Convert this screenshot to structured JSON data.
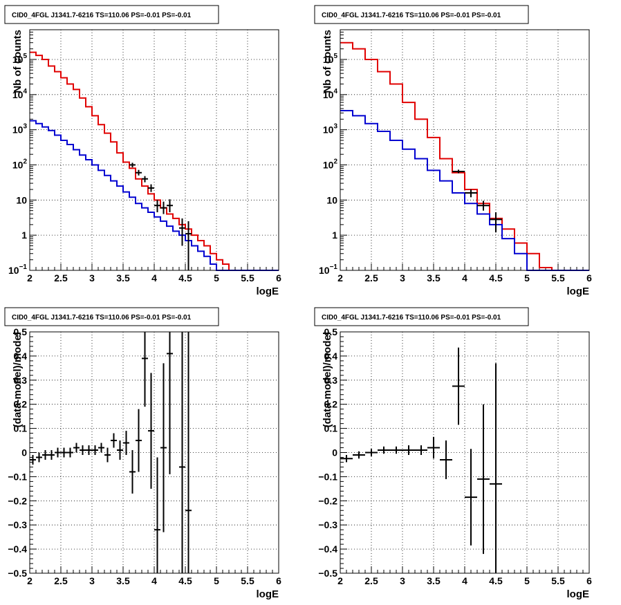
{
  "chart_data": [
    {
      "type": "line",
      "title": "CID0_4FGL J1341.7-6216 TS=110.06 PS=-0.01 PS=-0.01",
      "xlabel": "logE",
      "ylabel": "Nb of counts",
      "xlim": [
        2,
        6
      ],
      "ylim": [
        0.1,
        700000
      ],
      "yscale": "log",
      "grid": true,
      "xticks": [
        "2",
        "2.5",
        "3",
        "3.5",
        "4",
        "4.5",
        "5",
        "5.5",
        "6"
      ],
      "yticks": [
        {
          "value": 0.1,
          "base": "10",
          "exp": "−1"
        },
        {
          "value": 1,
          "base": "1",
          "exp": ""
        },
        {
          "value": 10,
          "base": "10",
          "exp": ""
        },
        {
          "value": 100,
          "base": "10",
          "exp": "2"
        },
        {
          "value": 1000,
          "base": "10",
          "exp": "3"
        },
        {
          "value": 10000,
          "base": "10",
          "exp": "4"
        },
        {
          "value": 100000,
          "base": "10",
          "exp": "5"
        }
      ],
      "bin_edges": [
        2.0,
        2.1,
        2.2,
        2.3,
        2.4,
        2.5,
        2.6,
        2.7,
        2.8,
        2.9,
        3.0,
        3.1,
        3.2,
        3.3,
        3.4,
        3.5,
        3.6,
        3.7,
        3.8,
        3.9,
        4.0,
        4.1,
        4.2,
        4.3,
        4.4,
        4.5,
        4.6,
        4.7,
        4.8,
        4.9,
        5.0,
        5.1,
        5.2,
        5.3,
        5.4,
        5.5,
        5.6,
        5.7,
        5.8,
        5.9,
        6.0
      ],
      "series": [
        {
          "color": "#e00000",
          "values": [
            160000,
            130000,
            100000,
            65000,
            45000,
            30000,
            20000,
            14000,
            8000,
            4500,
            2500,
            1400,
            800,
            450,
            220,
            120,
            80,
            40,
            25,
            15,
            10,
            6,
            4,
            3,
            2,
            1.5,
            1,
            0.7,
            0.5,
            0.3,
            0.2,
            0.15,
            0.1,
            0.1,
            0.1,
            0.1,
            0.1,
            0.1,
            0.1,
            0.1
          ]
        },
        {
          "color": "#0000d0",
          "values": [
            1800,
            1500,
            1200,
            950,
            700,
            500,
            380,
            270,
            190,
            140,
            100,
            70,
            50,
            35,
            25,
            17,
            12,
            8,
            6,
            4.5,
            3.3,
            2.5,
            1.8,
            1.3,
            1,
            0.7,
            0.5,
            0.35,
            0.25,
            0.15,
            0.1,
            0.1,
            0.1,
            0.1,
            0.1,
            0.1,
            0.1,
            0.1,
            0.1,
            0.1
          ]
        }
      ],
      "data_points": [
        {
          "x": 3.65,
          "y": 100,
          "ylo": 85,
          "yhi": 115
        },
        {
          "x": 3.75,
          "y": 60,
          "ylo": 50,
          "yhi": 72
        },
        {
          "x": 3.85,
          "y": 40,
          "ylo": 32,
          "yhi": 48
        },
        {
          "x": 3.95,
          "y": 22,
          "ylo": 17,
          "yhi": 28
        },
        {
          "x": 4.05,
          "y": 7,
          "ylo": 4.5,
          "yhi": 10
        },
        {
          "x": 4.15,
          "y": 6,
          "ylo": 4,
          "yhi": 9
        },
        {
          "x": 4.25,
          "y": 7,
          "ylo": 4.5,
          "yhi": 10.5
        },
        {
          "x": 4.45,
          "y": 1.6,
          "ylo": 0.5,
          "yhi": 3
        },
        {
          "x": 4.55,
          "y": 1.1,
          "ylo": 0.1,
          "yhi": 2.5
        }
      ]
    },
    {
      "type": "line",
      "title": "CID0_4FGL J1341.7-6216 TS=110.06 PS=-0.01 PS=-0.01",
      "xlabel": "logE",
      "ylabel": "Nb of counts",
      "xlim": [
        2,
        6
      ],
      "ylim": [
        0.1,
        700000
      ],
      "yscale": "log",
      "grid": true,
      "xticks": [
        "2",
        "2.5",
        "3",
        "3.5",
        "4",
        "4.5",
        "5",
        "5.5",
        "6"
      ],
      "yticks": [
        {
          "value": 0.1,
          "base": "10",
          "exp": "−1"
        },
        {
          "value": 1,
          "base": "1",
          "exp": ""
        },
        {
          "value": 10,
          "base": "10",
          "exp": ""
        },
        {
          "value": 100,
          "base": "10",
          "exp": "2"
        },
        {
          "value": 1000,
          "base": "10",
          "exp": "3"
        },
        {
          "value": 10000,
          "base": "10",
          "exp": "4"
        },
        {
          "value": 100000,
          "base": "10",
          "exp": "5"
        }
      ],
      "bin_edges": [
        2.0,
        2.2,
        2.4,
        2.6,
        2.8,
        3.0,
        3.2,
        3.4,
        3.6,
        3.8,
        4.0,
        4.2,
        4.4,
        4.6,
        4.8,
        5.0,
        5.2,
        5.4,
        5.6,
        5.8,
        6.0
      ],
      "series": [
        {
          "color": "#e00000",
          "values": [
            300000,
            200000,
            100000,
            45000,
            20000,
            6000,
            2000,
            600,
            150,
            60,
            20,
            8,
            3,
            1.5,
            0.6,
            0.3,
            0.12,
            0.1,
            0.1,
            0.1
          ]
        },
        {
          "color": "#0000d0",
          "values": [
            3500,
            2500,
            1500,
            900,
            500,
            280,
            150,
            70,
            35,
            16,
            8,
            4,
            2,
            0.8,
            0.3,
            0.1,
            0.1,
            0.1,
            0.1,
            0.1
          ]
        }
      ],
      "data_points": [
        {
          "x": 3.9,
          "y": 65,
          "ylo": 58,
          "yhi": 73
        },
        {
          "x": 4.1,
          "y": 16,
          "ylo": 12,
          "yhi": 20
        },
        {
          "x": 4.3,
          "y": 7,
          "ylo": 5,
          "yhi": 9.5
        },
        {
          "x": 4.5,
          "y": 2.8,
          "ylo": 1.2,
          "yhi": 4.5
        }
      ]
    },
    {
      "type": "scatter",
      "title": "CID0_4FGL J1341.7-6216 TS=110.06 PS=-0.01 PS=-0.01",
      "xlabel": "logE",
      "ylabel": "(data-model)/model",
      "xlim": [
        2,
        6
      ],
      "ylim": [
        -0.5,
        0.5
      ],
      "yscale": "linear",
      "grid": true,
      "xticks": [
        "2",
        "2.5",
        "3",
        "3.5",
        "4",
        "4.5",
        "5",
        "5.5",
        "6"
      ],
      "yticks": [
        {
          "value": -0.5,
          "label": "−0.5"
        },
        {
          "value": -0.4,
          "label": "−0.4"
        },
        {
          "value": -0.3,
          "label": "−0.3"
        },
        {
          "value": -0.2,
          "label": "−0.2"
        },
        {
          "value": -0.1,
          "label": "−0.1"
        },
        {
          "value": 0,
          "label": "0"
        },
        {
          "value": 0.1,
          "label": "0.1"
        },
        {
          "value": 0.2,
          "label": "0.2"
        },
        {
          "value": 0.3,
          "label": "0.3"
        },
        {
          "value": 0.4,
          "label": "0.4"
        },
        {
          "value": 0.5,
          "label": "0.5"
        }
      ],
      "xerr": 0.05,
      "points": [
        {
          "x": 2.05,
          "y": -0.03,
          "err": 0.02
        },
        {
          "x": 2.15,
          "y": -0.02,
          "err": 0.02
        },
        {
          "x": 2.25,
          "y": -0.01,
          "err": 0.02
        },
        {
          "x": 2.35,
          "y": -0.01,
          "err": 0.02
        },
        {
          "x": 2.45,
          "y": 0.0,
          "err": 0.02
        },
        {
          "x": 2.55,
          "y": 0.0,
          "err": 0.02
        },
        {
          "x": 2.65,
          "y": 0.0,
          "err": 0.02
        },
        {
          "x": 2.75,
          "y": 0.02,
          "err": 0.02
        },
        {
          "x": 2.85,
          "y": 0.01,
          "err": 0.02
        },
        {
          "x": 2.95,
          "y": 0.01,
          "err": 0.02
        },
        {
          "x": 3.05,
          "y": 0.01,
          "err": 0.02
        },
        {
          "x": 3.15,
          "y": 0.02,
          "err": 0.02
        },
        {
          "x": 3.25,
          "y": -0.01,
          "err": 0.03
        },
        {
          "x": 3.35,
          "y": 0.05,
          "err": 0.03
        },
        {
          "x": 3.45,
          "y": 0.01,
          "err": 0.04
        },
        {
          "x": 3.55,
          "y": 0.04,
          "err": 0.05
        },
        {
          "x": 3.65,
          "y": -0.08,
          "err": 0.09
        },
        {
          "x": 3.75,
          "y": 0.05,
          "err": 0.13
        },
        {
          "x": 3.85,
          "y": 0.39,
          "err": 0.2
        },
        {
          "x": 3.95,
          "y": 0.09,
          "err": 0.24
        },
        {
          "x": 4.05,
          "y": -0.32,
          "err": 0.3
        },
        {
          "x": 4.15,
          "y": 0.02,
          "err": 0.35
        },
        {
          "x": 4.25,
          "y": 0.41,
          "err": 0.5
        },
        {
          "x": 4.45,
          "y": -0.06,
          "err": 0.8
        },
        {
          "x": 4.55,
          "y": -0.24,
          "err": 0.8
        }
      ]
    },
    {
      "type": "scatter",
      "title": "CID0_4FGL J1341.7-6216 TS=110.06 PS=-0.01 PS=-0.01",
      "xlabel": "logE",
      "ylabel": "(data-model)/model",
      "xlim": [
        2,
        6
      ],
      "ylim": [
        -0.5,
        0.5
      ],
      "yscale": "linear",
      "grid": true,
      "xticks": [
        "2",
        "2.5",
        "3",
        "3.5",
        "4",
        "4.5",
        "5",
        "5.5",
        "6"
      ],
      "yticks": [
        {
          "value": -0.5,
          "label": "−0.5"
        },
        {
          "value": -0.4,
          "label": "−0.4"
        },
        {
          "value": -0.3,
          "label": "−0.3"
        },
        {
          "value": -0.2,
          "label": "−0.2"
        },
        {
          "value": -0.1,
          "label": "−0.1"
        },
        {
          "value": 0,
          "label": "0"
        },
        {
          "value": 0.1,
          "label": "0.1"
        },
        {
          "value": 0.2,
          "label": "0.2"
        },
        {
          "value": 0.3,
          "label": "0.3"
        },
        {
          "value": 0.4,
          "label": "0.4"
        },
        {
          "value": 0.5,
          "label": "0.5"
        }
      ],
      "xerr": 0.1,
      "points": [
        {
          "x": 2.1,
          "y": -0.025,
          "err": 0.015
        },
        {
          "x": 2.3,
          "y": -0.01,
          "err": 0.015
        },
        {
          "x": 2.5,
          "y": 0.0,
          "err": 0.015
        },
        {
          "x": 2.7,
          "y": 0.01,
          "err": 0.015
        },
        {
          "x": 2.9,
          "y": 0.01,
          "err": 0.015
        },
        {
          "x": 3.1,
          "y": 0.01,
          "err": 0.02
        },
        {
          "x": 3.3,
          "y": 0.01,
          "err": 0.02
        },
        {
          "x": 3.5,
          "y": 0.02,
          "err": 0.045
        },
        {
          "x": 3.7,
          "y": -0.03,
          "err": 0.08
        },
        {
          "x": 3.9,
          "y": 0.275,
          "err": 0.16
        },
        {
          "x": 4.1,
          "y": -0.185,
          "err": 0.2
        },
        {
          "x": 4.3,
          "y": -0.11,
          "err": 0.31
        },
        {
          "x": 4.5,
          "y": -0.13,
          "err": 0.5
        }
      ]
    }
  ]
}
